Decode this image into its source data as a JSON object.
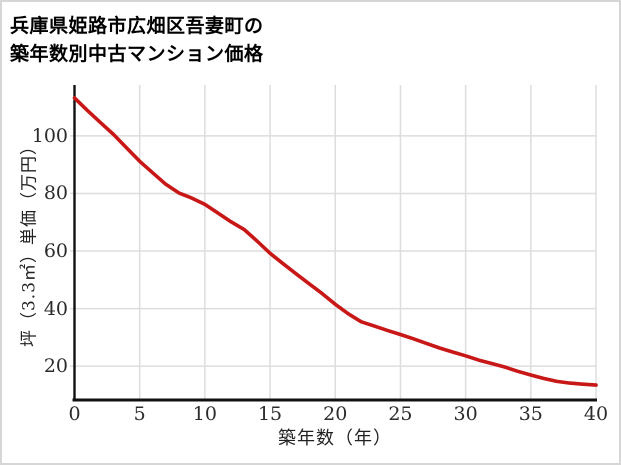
{
  "window": {
    "background": "#ffffff",
    "border_color": "#d6d6d6"
  },
  "title": {
    "line1": "兵庫県姫路市広畑区吾妻町の",
    "line2": "築年数別中古マンション価格"
  },
  "chart_data": {
    "type": "line",
    "title": "兵庫県姫路市広畑区吾妻町の築年数別中古マンション価格",
    "xlabel": "築年数（年）",
    "ylabel": "坪（3.3㎡）単価（万円）",
    "x": [
      0,
      1,
      2,
      3,
      4,
      5,
      6,
      7,
      8,
      9,
      10,
      11,
      12,
      13,
      14,
      15,
      16,
      17,
      18,
      19,
      20,
      21,
      22,
      23,
      24,
      25,
      26,
      27,
      28,
      29,
      30,
      31,
      32,
      33,
      34,
      35,
      36,
      37,
      38,
      39,
      40
    ],
    "series": [
      {
        "name": "坪単価（万円）",
        "color": "#c81717",
        "values": [
          113.2,
          108.8,
          104.6,
          100.5,
          95.8,
          91.2,
          87.2,
          83.2,
          80.2,
          78.4,
          76.2,
          73.2,
          70.2,
          67.5,
          63.5,
          59.2,
          55.6,
          52.1,
          48.6,
          45.2,
          41.5,
          38.2,
          35.4,
          33.9,
          32.4,
          31.0,
          29.5,
          27.9,
          26.3,
          24.9,
          23.6,
          22.1,
          20.9,
          19.7,
          18.2,
          16.9,
          15.7,
          14.7,
          14.1,
          13.7,
          13.4
        ]
      }
    ],
    "xticks": [
      0,
      5,
      10,
      15,
      20,
      25,
      30,
      35,
      40
    ],
    "yticks": [
      20,
      40,
      60,
      80,
      100
    ],
    "xlim": [
      0,
      40
    ],
    "ylim": [
      8.4,
      117.7
    ],
    "grid": true,
    "legend": "none",
    "grid_color": "#dddddd",
    "axis_color": "#111111",
    "tick_color": "#2b2b2b"
  }
}
